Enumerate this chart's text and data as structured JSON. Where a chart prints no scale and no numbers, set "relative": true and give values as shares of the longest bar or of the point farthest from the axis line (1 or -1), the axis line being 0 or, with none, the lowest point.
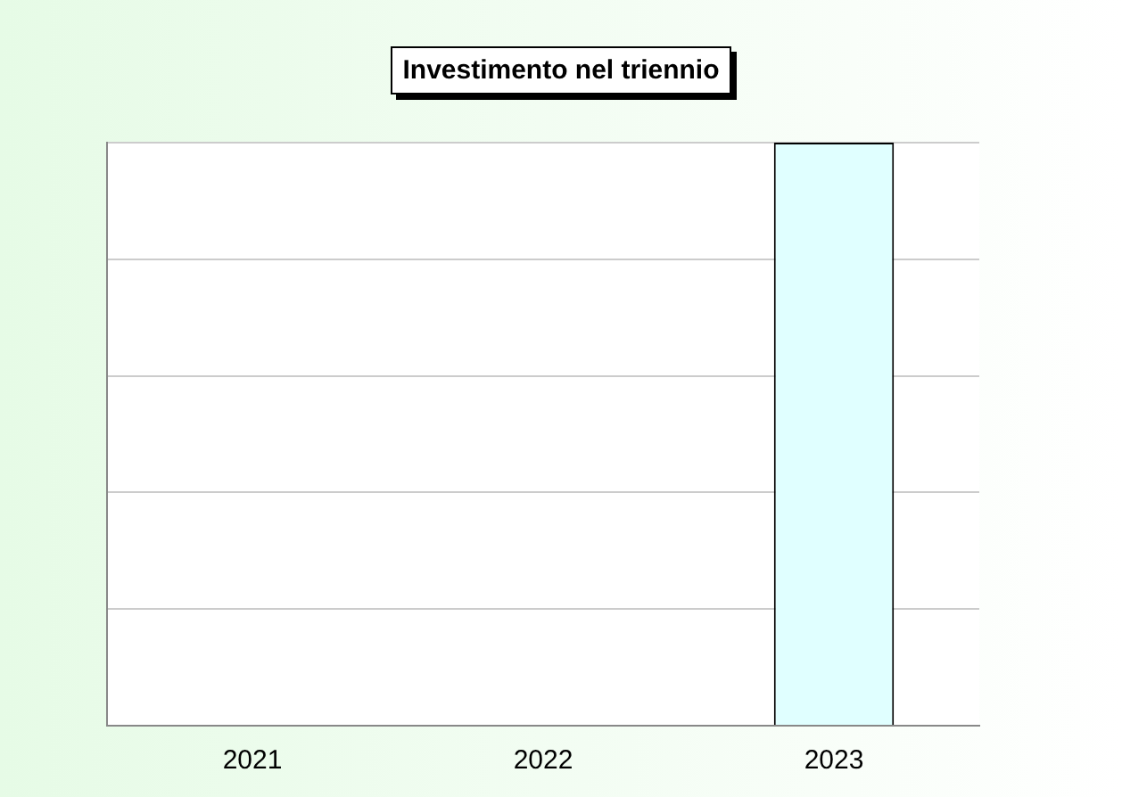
{
  "chart_data": {
    "type": "bar",
    "title": "Investimento nel triennio",
    "relative": true,
    "categories": [
      "2021",
      "2022",
      "2023"
    ],
    "values": [
      0,
      0,
      1
    ],
    "colors": [
      "#2a4fc9",
      "#1aa3c6",
      "#e0ffff"
    ],
    "grid": "y",
    "legend": false
  }
}
